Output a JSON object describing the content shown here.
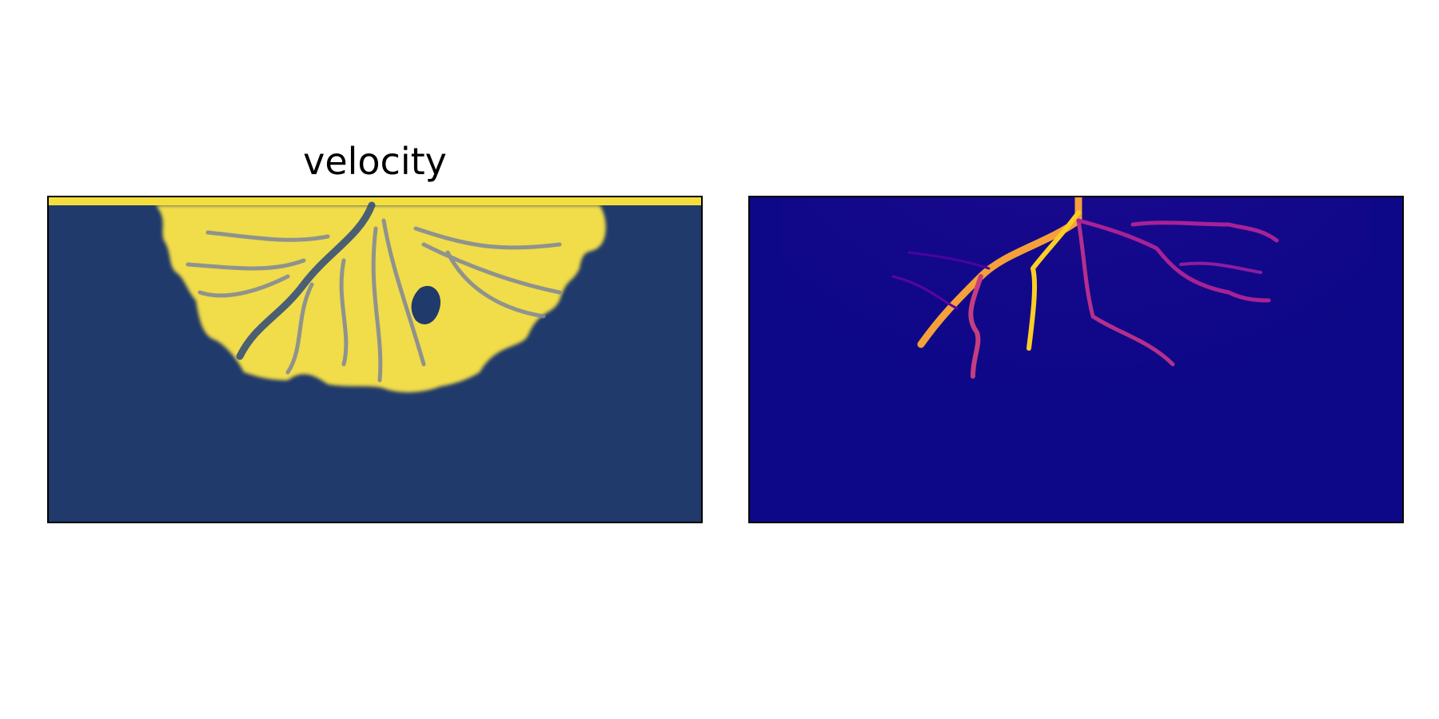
{
  "title": "velocity"
}
